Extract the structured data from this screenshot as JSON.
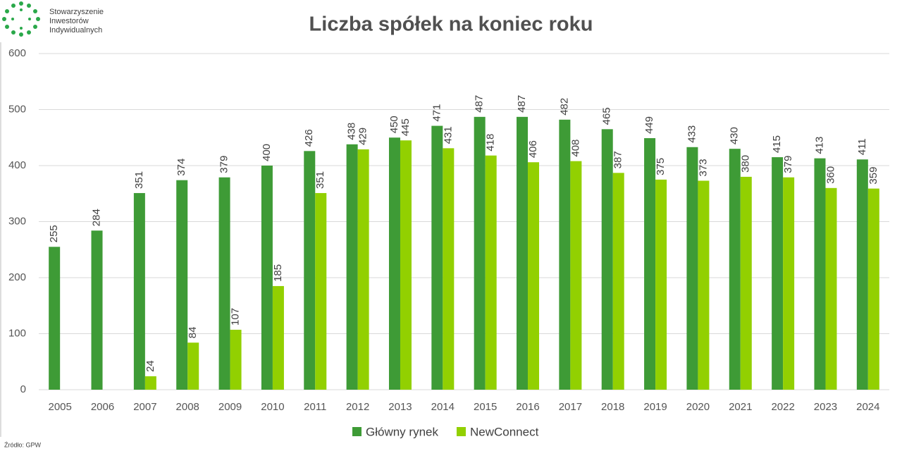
{
  "logo_text": [
    "Stowarzyszenie",
    "Inwestorów",
    "Indywidualnych"
  ],
  "source": "Źródło: GPW",
  "chart_data": {
    "type": "bar",
    "title": "Liczba spółek na koniec roku",
    "categories": [
      "2005",
      "2006",
      "2007",
      "2008",
      "2009",
      "2010",
      "2011",
      "2012",
      "2013",
      "2014",
      "2015",
      "2016",
      "2017",
      "2018",
      "2019",
      "2020",
      "2021",
      "2022",
      "2023",
      "2024"
    ],
    "series": [
      {
        "name": "Główny rynek",
        "color": "#3e9b36",
        "values": [
          255,
          284,
          351,
          374,
          379,
          400,
          426,
          438,
          450,
          471,
          487,
          487,
          482,
          465,
          449,
          433,
          430,
          415,
          413,
          411
        ]
      },
      {
        "name": "NewConnect",
        "color": "#92d001",
        "values": [
          null,
          null,
          24,
          84,
          107,
          185,
          351,
          429,
          445,
          431,
          418,
          406,
          408,
          387,
          375,
          373,
          380,
          379,
          360,
          359
        ]
      }
    ],
    "ylim": [
      0,
      600
    ],
    "yticks": [
      0,
      100,
      200,
      300,
      400,
      500,
      600
    ],
    "grid": true,
    "legend": "bottom"
  }
}
